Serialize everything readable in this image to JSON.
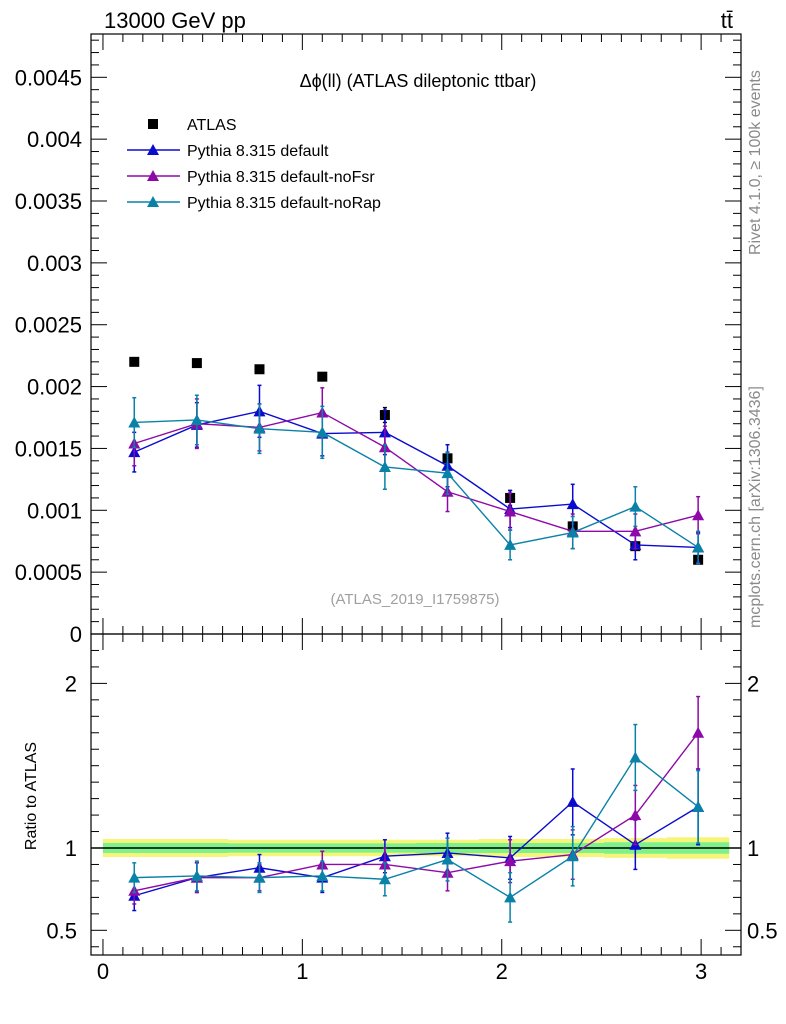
{
  "header": {
    "beam": "13000 GeV pp",
    "process": "tt̄"
  },
  "side_labels": {
    "rivet": "Rivet 4.1.0, ≥ 100k events",
    "mcplots": "mcplots.cern.ch [arXiv:1306.3436]"
  },
  "colors": {
    "data": "#000000",
    "default": "#0b0bd0",
    "noFsr": "#8e0aa8",
    "noRap": "#0a82a8",
    "band_outer": "#f5f57a",
    "band_inner": "#7ef08c"
  },
  "chart_data": [
    {
      "type": "scatter",
      "title": "Δϕ(ll) (ATLAS dileptonic ttbar)",
      "watermark": "(ATLAS_2019_I1759875)",
      "xlabel": "",
      "ylabel": "",
      "xlim": [
        -0.06,
        3.2
      ],
      "ylim": [
        0,
        0.00485
      ],
      "yticks": [
        0,
        0.0005,
        0.001,
        0.0015,
        0.002,
        0.0025,
        0.003,
        0.0035,
        0.004,
        0.0045
      ],
      "ytick_labels": [
        "0",
        "0.0005",
        "0.001",
        "0.0015",
        "0.002",
        "0.0025",
        "0.003",
        "0.0035",
        "0.004",
        "0.0045"
      ],
      "x": [
        0.157,
        0.471,
        0.785,
        1.1,
        1.414,
        1.728,
        2.042,
        2.356,
        2.67,
        2.985
      ],
      "legend": [
        "ATLAS",
        "Pythia 8.315 default",
        "Pythia 8.315 default-noFsr",
        "Pythia 8.315 default-noRap"
      ],
      "series": [
        {
          "name": "ATLAS",
          "marker": "square",
          "values": [
            0.0022,
            0.00219,
            0.00214,
            0.00208,
            0.00177,
            0.00142,
            0.0011,
            0.00087,
            0.00071,
            0.0006
          ],
          "errors": [
            3e-05,
            3e-05,
            3e-05,
            3e-05,
            6e-05,
            5e-05,
            6e-05,
            3e-05,
            3e-05,
            3e-05
          ]
        },
        {
          "name": "Pythia 8.315 default",
          "marker": "triangle",
          "values": [
            0.00147,
            0.00169,
            0.0018,
            0.00162,
            0.00163,
            0.00136,
            0.00101,
            0.00105,
            0.00072,
            0.0007
          ],
          "errors": [
            0.00016,
            0.00018,
            0.00021,
            0.00018,
            0.00018,
            0.00017,
            0.00015,
            0.00016,
            0.00012,
            0.00012
          ]
        },
        {
          "name": "Pythia 8.315 default-noFsr",
          "marker": "triangle",
          "values": [
            0.00154,
            0.0017,
            0.00167,
            0.00179,
            0.00151,
            0.00115,
            0.00099,
            0.00083,
            0.00083,
            0.00096
          ],
          "errors": [
            0.00018,
            0.0002,
            0.00019,
            0.0002,
            0.00017,
            0.00016,
            0.00015,
            0.00014,
            0.00014,
            0.00015
          ]
        },
        {
          "name": "Pythia 8.315 default-noRap",
          "marker": "triangle",
          "values": [
            0.00171,
            0.00173,
            0.00166,
            0.00163,
            0.00135,
            0.0013,
            0.00072,
            0.00082,
            0.00103,
            0.0007
          ],
          "errors": [
            0.0002,
            0.0002,
            0.0002,
            0.00021,
            0.00018,
            0.00017,
            0.00012,
            0.00013,
            0.00016,
            0.00013
          ]
        }
      ]
    },
    {
      "type": "scatter",
      "ylabel": "Ratio to ATLAS",
      "xlim": [
        -0.06,
        3.2
      ],
      "ylim": [
        0.35,
        2.3
      ],
      "yticks": [
        0.5,
        1,
        2
      ],
      "ytick_labels": [
        "0.5",
        "1",
        "2"
      ],
      "xticks": [
        0,
        1,
        2,
        3
      ],
      "xtick_labels": [
        "0",
        "1",
        "2",
        "3"
      ],
      "x": [
        0.157,
        0.471,
        0.785,
        1.1,
        1.414,
        1.728,
        2.042,
        2.356,
        2.67,
        2.985
      ],
      "band_outer": [
        0.055,
        0.055,
        0.05,
        0.05,
        0.05,
        0.05,
        0.055,
        0.055,
        0.06,
        0.065
      ],
      "band_inner": [
        0.03,
        0.03,
        0.028,
        0.028,
        0.028,
        0.03,
        0.03,
        0.03,
        0.035,
        0.035
      ],
      "series": [
        {
          "name": "Pythia 8.315 default",
          "values": [
            0.71,
            0.82,
            0.88,
            0.82,
            0.95,
            0.97,
            0.94,
            1.28,
            1.02,
            1.25
          ],
          "errors": [
            0.09,
            0.09,
            0.08,
            0.09,
            0.1,
            0.12,
            0.13,
            0.2,
            0.15,
            0.23
          ]
        },
        {
          "name": "Pythia 8.315 default-noFsr",
          "values": [
            0.74,
            0.82,
            0.82,
            0.9,
            0.9,
            0.85,
            0.92,
            0.96,
            1.2,
            1.7
          ],
          "errors": [
            0.08,
            0.09,
            0.08,
            0.08,
            0.1,
            0.11,
            0.13,
            0.15,
            0.18,
            0.22
          ]
        },
        {
          "name": "Pythia 8.315 default-noRap",
          "values": [
            0.82,
            0.83,
            0.82,
            0.83,
            0.81,
            0.93,
            0.7,
            0.95,
            1.55,
            1.25
          ],
          "errors": [
            0.09,
            0.09,
            0.09,
            0.09,
            0.1,
            0.13,
            0.15,
            0.18,
            0.2,
            0.22
          ]
        }
      ]
    }
  ]
}
